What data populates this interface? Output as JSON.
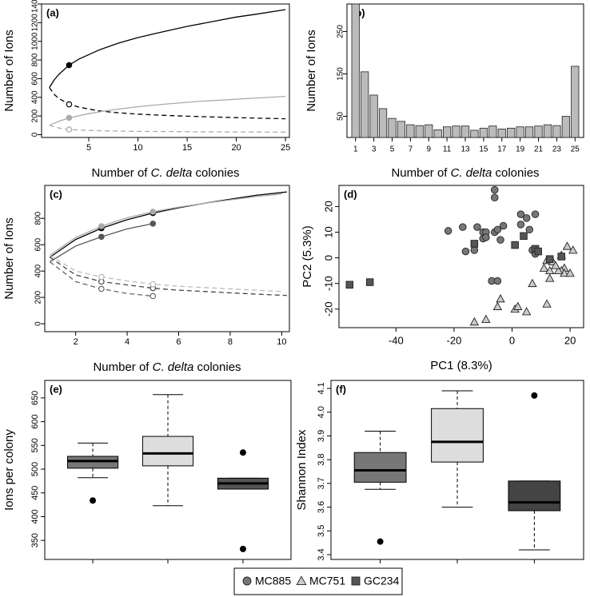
{
  "chart_data": [
    {
      "id": "a",
      "type": "line",
      "panel_label": "(a)",
      "xlabel_prefix": "Number of ",
      "xlabel_italic": "C. delta",
      "xlabel_suffix": " colonies",
      "ylabel": "Number of Ions",
      "xlim": [
        0,
        25
      ],
      "ylim": [
        0,
        1400
      ],
      "xticks": [
        5,
        10,
        15,
        20,
        25
      ],
      "yticks": [
        0,
        200,
        400,
        600,
        800,
        1000,
        1200,
        1400
      ],
      "ytick_labels": [
        "0",
        "200",
        "400",
        "600",
        "800",
        "1000",
        "1200",
        "1400"
      ],
      "series": [
        {
          "name": "observed-black",
          "color": "#000000",
          "dash": false,
          "x": [
            1,
            1.5,
            2,
            3,
            4,
            6,
            8,
            10,
            12,
            15,
            18,
            20,
            22,
            25
          ],
          "y": [
            505,
            590,
            650,
            745,
            810,
            905,
            980,
            1040,
            1090,
            1160,
            1220,
            1260,
            1290,
            1340
          ],
          "marker": {
            "x": 3,
            "y": 745,
            "filled": true
          }
        },
        {
          "name": "extrapolated-black",
          "color": "#000000",
          "dash": true,
          "x": [
            1,
            1.5,
            2,
            3,
            4,
            6,
            8,
            10,
            12,
            15,
            18,
            20,
            22,
            25
          ],
          "y": [
            505,
            430,
            385,
            325,
            295,
            255,
            235,
            220,
            210,
            198,
            188,
            182,
            177,
            170
          ],
          "marker": {
            "x": 3,
            "y": 325,
            "filled": false
          }
        },
        {
          "name": "observed-gray",
          "color": "#aaaaaa",
          "dash": false,
          "x": [
            1,
            2,
            3,
            5,
            7,
            10,
            13,
            16,
            20,
            25
          ],
          "y": [
            100,
            145,
            180,
            225,
            260,
            300,
            330,
            355,
            380,
            410
          ],
          "marker": {
            "x": 3,
            "y": 180,
            "filled": true
          }
        },
        {
          "name": "extrapolated-gray",
          "color": "#aaaaaa",
          "dash": true,
          "x": [
            1,
            2,
            3,
            5,
            7,
            10,
            13,
            16,
            20,
            25
          ],
          "y": [
            100,
            70,
            55,
            45,
            40,
            35,
            33,
            31,
            29,
            27
          ],
          "marker": {
            "x": 3,
            "y": 55,
            "filled": false
          }
        }
      ]
    },
    {
      "id": "b",
      "type": "bar",
      "panel_label": "(b)",
      "xlabel_prefix": "Number of ",
      "xlabel_italic": "C. delta",
      "xlabel_suffix": " colonies",
      "ylabel": "Number of Ions",
      "ylim": [
        0,
        315
      ],
      "yticks": [
        50,
        150,
        250
      ],
      "categories": [
        "1",
        "2",
        "3",
        "4",
        "5",
        "6",
        "7",
        "8",
        "9",
        "10",
        "11",
        "12",
        "13",
        "14",
        "15",
        "16",
        "17",
        "18",
        "19",
        "20",
        "21",
        "22",
        "23",
        "24",
        "25"
      ],
      "xtick_labels": [
        "1",
        "3",
        "5",
        "7",
        "9",
        "11",
        "13",
        "15",
        "17",
        "19",
        "21",
        "23",
        "25"
      ],
      "values": [
        315,
        155,
        100,
        68,
        45,
        38,
        30,
        28,
        30,
        18,
        25,
        27,
        27,
        17,
        22,
        27,
        20,
        22,
        25,
        25,
        27,
        30,
        28,
        50,
        168
      ],
      "color": "#bbbbbb"
    },
    {
      "id": "c",
      "type": "line",
      "panel_label": "(c)",
      "xlabel_prefix": "Number of ",
      "xlabel_italic": "C. delta",
      "xlabel_suffix": " colonies",
      "ylabel": "Number of Ions",
      "xlim": [
        1,
        10
      ],
      "ylim": [
        0,
        900
      ],
      "xticks": [
        2,
        4,
        6,
        8,
        10
      ],
      "yticks": [
        0,
        200,
        400,
        600,
        800
      ],
      "series": [
        {
          "name": "MC885-observed",
          "color": "#000000",
          "dash": false,
          "x": [
            1,
            2,
            3,
            4,
            5,
            6,
            7,
            8,
            9,
            10.2
          ],
          "y": [
            505,
            640,
            725,
            790,
            840,
            880,
            915,
            945,
            975,
            1000
          ],
          "marker": {
            "x": 3,
            "y": 725,
            "filled": true
          }
        },
        {
          "name": "MC751-observed",
          "color": "#aaaaaa",
          "dash": false,
          "x": [
            1,
            2,
            3,
            4,
            5,
            6,
            7,
            8,
            9,
            10
          ],
          "y": [
            520,
            655,
            740,
            805,
            850,
            885,
            915,
            940,
            965,
            985
          ],
          "marker": {
            "x": 3,
            "y": 740,
            "filled": true
          }
        },
        {
          "name": "GC234-observed",
          "color": "#555555",
          "dash": false,
          "x": [
            1,
            2,
            3,
            4,
            5
          ],
          "y": [
            470,
            590,
            660,
            720,
            760
          ],
          "marker": {
            "x": 3,
            "y": 660,
            "filled": true
          }
        },
        {
          "name": "MC885-extrapolated",
          "color": "#444444",
          "dash": true,
          "x": [
            1,
            2,
            3,
            4,
            5,
            6,
            7,
            8,
            9,
            10.2
          ],
          "y": [
            505,
            370,
            320,
            295,
            270,
            255,
            245,
            235,
            225,
            215
          ],
          "marker": {
            "x": 3,
            "y": 320,
            "filled": false
          }
        },
        {
          "name": "MC751-extrapolated",
          "color": "#bbbbbb",
          "dash": true,
          "x": [
            1,
            2,
            3,
            4,
            5,
            6,
            7,
            8,
            9,
            10
          ],
          "y": [
            520,
            400,
            355,
            325,
            300,
            285,
            275,
            265,
            255,
            245
          ],
          "marker": {
            "x": 3,
            "y": 355,
            "filled": false
          }
        },
        {
          "name": "GC234-extrapolated",
          "color": "#666666",
          "dash": true,
          "x": [
            1,
            2,
            3,
            4,
            5
          ],
          "y": [
            470,
            320,
            265,
            230,
            210
          ],
          "marker": {
            "x": 3,
            "y": 265,
            "filled": false
          }
        },
        {
          "name": "MC885-marker5",
          "color": "#000000",
          "dash": false,
          "x": [
            5
          ],
          "y": [
            840
          ],
          "marker": {
            "x": 5,
            "y": 840,
            "filled": true
          }
        },
        {
          "name": "MC751-marker5",
          "color": "#aaaaaa",
          "dash": false,
          "x": [
            5
          ],
          "y": [
            850
          ],
          "marker": {
            "x": 5,
            "y": 850,
            "filled": true
          }
        },
        {
          "name": "GC234-marker5",
          "color": "#555555",
          "dash": false,
          "x": [
            5
          ],
          "y": [
            760
          ],
          "marker": {
            "x": 5,
            "y": 760,
            "filled": true
          }
        },
        {
          "name": "MC885-marker5-ext",
          "color": "#444444",
          "dash": false,
          "x": [
            5
          ],
          "y": [
            270
          ],
          "marker": {
            "x": 5,
            "y": 270,
            "filled": false
          }
        },
        {
          "name": "MC751-marker5-ext",
          "color": "#bbbbbb",
          "dash": false,
          "x": [
            5
          ],
          "y": [
            300
          ],
          "marker": {
            "x": 5,
            "y": 300,
            "filled": false
          }
        },
        {
          "name": "GC234-marker5-ext",
          "color": "#666666",
          "dash": false,
          "x": [
            5
          ],
          "y": [
            210
          ],
          "marker": {
            "x": 5,
            "y": 210,
            "filled": false
          }
        }
      ]
    },
    {
      "id": "d",
      "type": "scatter",
      "panel_label": "(d)",
      "xlabel": "PC1 (8.3%)",
      "ylabel": "PC2 (5.3%)",
      "xlim": [
        -58,
        23
      ],
      "ylim": [
        -26,
        27
      ],
      "xticks": [
        -40,
        -20,
        0,
        20
      ],
      "yticks": [
        -20,
        -10,
        0,
        10,
        20
      ],
      "series": [
        {
          "name": "MC885",
          "shape": "circle",
          "color": "#777777",
          "points": [
            [
              -6,
              26.5
            ],
            [
              -6,
              23.5
            ],
            [
              -22,
              10.5
            ],
            [
              -17,
              12
            ],
            [
              -10,
              10
            ],
            [
              -9,
              10
            ],
            [
              -10,
              7.5
            ],
            [
              -9,
              8
            ],
            [
              -6,
              10
            ],
            [
              -5,
              11
            ],
            [
              -16,
              2.5
            ],
            [
              -13,
              3
            ],
            [
              -12,
              12
            ],
            [
              -3,
              12.5
            ],
            [
              3,
              17
            ],
            [
              5,
              15.5
            ],
            [
              6,
              11
            ],
            [
              8,
              17
            ],
            [
              -4,
              7
            ],
            [
              3,
              13
            ],
            [
              7,
              3
            ],
            [
              8,
              1.5
            ],
            [
              -7,
              -9
            ],
            [
              -5,
              -9
            ]
          ]
        },
        {
          "name": "MC751",
          "shape": "triangle",
          "color": "#cccccc",
          "points": [
            [
              19,
              4.5
            ],
            [
              21,
              3
            ],
            [
              12,
              -1
            ],
            [
              13,
              -1
            ],
            [
              14,
              -1.5
            ],
            [
              17,
              1
            ],
            [
              18,
              -4
            ],
            [
              17,
              -5
            ],
            [
              18,
              -6
            ],
            [
              11,
              -4
            ],
            [
              13,
              -5
            ],
            [
              16,
              -5
            ],
            [
              15,
              -3
            ],
            [
              20,
              -6
            ],
            [
              13,
              -8
            ],
            [
              7,
              -10
            ],
            [
              -4,
              -16
            ],
            [
              -5,
              -19
            ],
            [
              1,
              -20
            ],
            [
              2,
              -19
            ],
            [
              12,
              -18
            ],
            [
              5,
              -21
            ],
            [
              -9,
              -24
            ],
            [
              -13,
              -25
            ]
          ]
        },
        {
          "name": "GC234",
          "shape": "square",
          "color": "#555555",
          "points": [
            [
              -56,
              -10.5
            ],
            [
              -49,
              -9.5
            ],
            [
              -13,
              5.5
            ],
            [
              1,
              5
            ],
            [
              4,
              8.5
            ],
            [
              8,
              3.5
            ],
            [
              9,
              2.5
            ],
            [
              13,
              -0.5
            ],
            [
              17,
              0.5
            ]
          ]
        }
      ]
    },
    {
      "id": "e",
      "type": "box",
      "panel_label": "(e)",
      "xlabel": "",
      "ylabel": "Ions per colony",
      "ylim": [
        320,
        670
      ],
      "yticks": [
        350,
        400,
        450,
        500,
        550,
        600,
        650
      ],
      "boxes": [
        {
          "name": "MC885",
          "color": "#777777",
          "q1": 502,
          "median": 517,
          "q3": 527,
          "whisker_low": 482,
          "whisker_high": 555,
          "outliers": [
            434
          ]
        },
        {
          "name": "MC751",
          "color": "#dddddd",
          "q1": 507,
          "median": 533,
          "q3": 569,
          "whisker_low": 423,
          "whisker_high": 657,
          "outliers": []
        },
        {
          "name": "GC234",
          "color": "#555555",
          "q1": 458,
          "median": 470,
          "q3": 481,
          "whisker_low": 458,
          "whisker_high": 481,
          "outliers": [
            535,
            332
          ]
        }
      ]
    },
    {
      "id": "f",
      "type": "box",
      "panel_label": "(f)",
      "xlabel": "",
      "ylabel": "Shannon Index",
      "ylim": [
        3.4,
        4.1
      ],
      "yticks": [
        3.4,
        3.5,
        3.6,
        3.7,
        3.8,
        3.9,
        4.0,
        4.1
      ],
      "ytick_labels": [
        "3.4",
        "3.5",
        "3.6",
        "3.7",
        "3.8",
        "3.9",
        "4.0",
        "4.1"
      ],
      "boxes": [
        {
          "name": "MC885",
          "color": "#777777",
          "q1": 3.705,
          "median": 3.755,
          "q3": 3.83,
          "whisker_low": 3.675,
          "whisker_high": 3.92,
          "outliers": [
            3.455
          ]
        },
        {
          "name": "MC751",
          "color": "#dddddd",
          "q1": 3.79,
          "median": 3.875,
          "q3": 4.015,
          "whisker_low": 3.6,
          "whisker_high": 4.09,
          "outliers": []
        },
        {
          "name": "GC234",
          "color": "#444444",
          "q1": 3.585,
          "median": 3.62,
          "q3": 3.71,
          "whisker_low": 3.42,
          "whisker_high": 3.71,
          "outliers": [
            4.07
          ]
        }
      ]
    }
  ],
  "legend": [
    {
      "label": "MC885",
      "shape": "circle",
      "color": "#777777"
    },
    {
      "label": "MC751",
      "shape": "triangle",
      "color": "#cccccc"
    },
    {
      "label": "GC234",
      "shape": "square",
      "color": "#555555"
    }
  ]
}
